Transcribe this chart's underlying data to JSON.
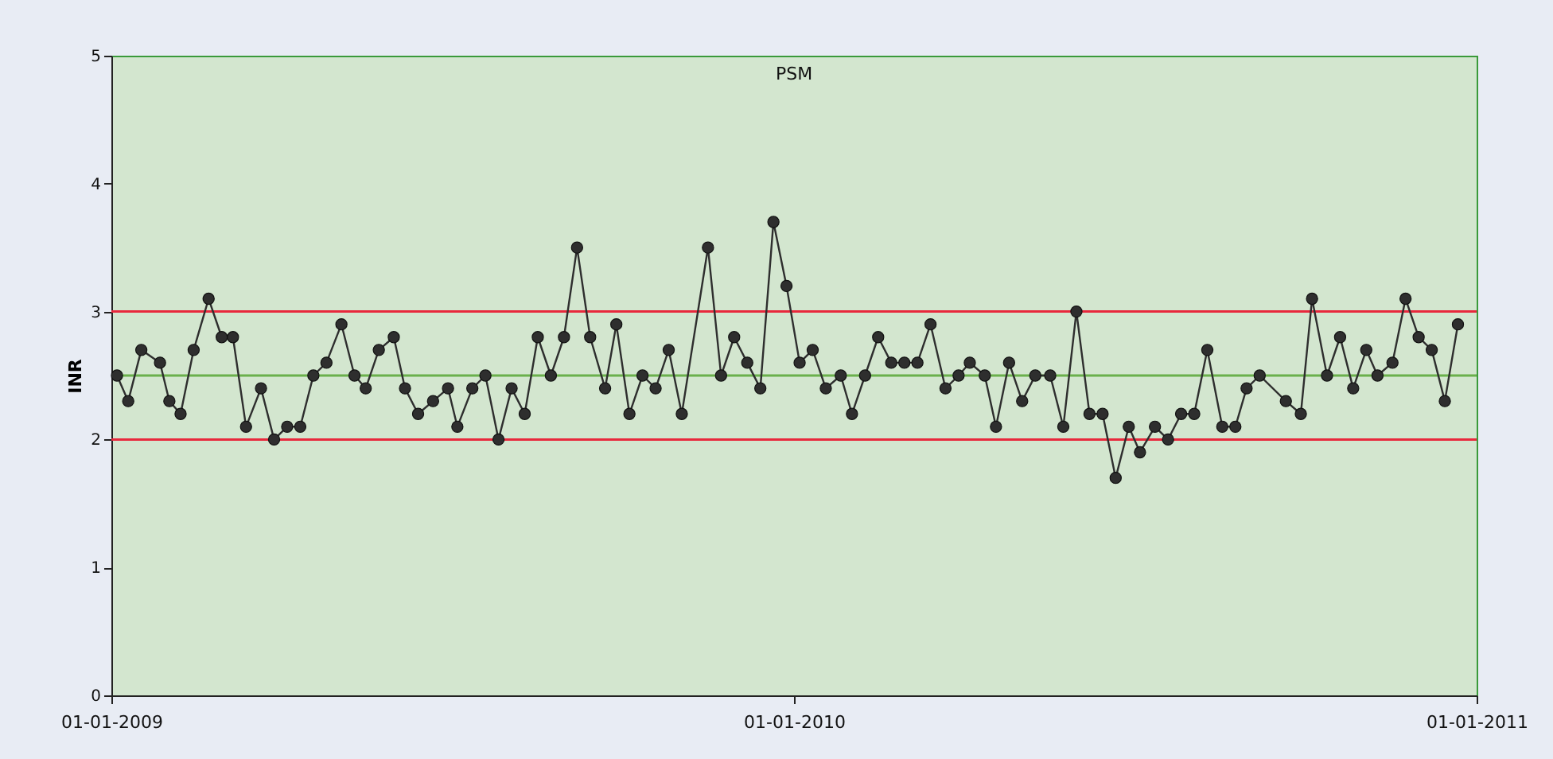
{
  "chart_data": {
    "type": "line",
    "title": "PSM",
    "ylabel": "INR",
    "x": [
      "2009-01-04",
      "2009-01-10",
      "2009-01-17",
      "2009-01-27",
      "2009-02-01",
      "2009-02-07",
      "2009-02-14",
      "2009-02-22",
      "2009-03-01",
      "2009-03-07",
      "2009-03-14",
      "2009-03-22",
      "2009-03-29",
      "2009-04-05",
      "2009-04-12",
      "2009-04-19",
      "2009-04-26",
      "2009-05-04",
      "2009-05-11",
      "2009-05-17",
      "2009-05-24",
      "2009-06-01",
      "2009-06-07",
      "2009-06-14",
      "2009-06-22",
      "2009-06-30",
      "2009-07-05",
      "2009-07-13",
      "2009-07-20",
      "2009-07-27",
      "2009-08-03",
      "2009-08-10",
      "2009-08-17",
      "2009-08-24",
      "2009-08-31",
      "2009-09-07",
      "2009-09-14",
      "2009-09-22",
      "2009-09-28",
      "2009-10-05",
      "2009-10-12",
      "2009-10-19",
      "2009-10-26",
      "2009-11-02",
      "2009-11-16",
      "2009-11-23",
      "2009-11-30",
      "2009-12-07",
      "2009-12-14",
      "2009-12-21",
      "2009-12-28",
      "2010-01-04",
      "2010-01-11",
      "2010-01-18",
      "2010-01-26",
      "2010-02-01",
      "2010-02-08",
      "2010-02-15",
      "2010-02-22",
      "2010-03-01",
      "2010-03-08",
      "2010-03-15",
      "2010-03-23",
      "2010-03-30",
      "2010-04-05",
      "2010-04-13",
      "2010-04-19",
      "2010-04-26",
      "2010-05-03",
      "2010-05-10",
      "2010-05-18",
      "2010-05-25",
      "2010-06-01",
      "2010-06-08",
      "2010-06-15",
      "2010-06-22",
      "2010-06-29",
      "2010-07-05",
      "2010-07-13",
      "2010-07-20",
      "2010-07-27",
      "2010-08-03",
      "2010-08-10",
      "2010-08-18",
      "2010-08-25",
      "2010-08-31",
      "2010-09-07",
      "2010-09-21",
      "2010-09-29",
      "2010-10-05",
      "2010-10-13",
      "2010-10-20",
      "2010-10-27",
      "2010-11-03",
      "2010-11-09",
      "2010-11-17",
      "2010-11-24",
      "2010-12-01",
      "2010-12-08",
      "2010-12-15",
      "2010-12-22"
    ],
    "series": [
      {
        "color": "#2e2e2e",
        "values": [
          2.5,
          2.3,
          2.7,
          2.6,
          2.3,
          2.2,
          2.7,
          3.1,
          2.8,
          2.8,
          2.1,
          2.4,
          2.0,
          2.1,
          2.1,
          2.5,
          2.6,
          2.9,
          2.5,
          2.4,
          2.7,
          2.8,
          2.4,
          2.2,
          2.3,
          2.4,
          2.1,
          2.4,
          2.5,
          2.0,
          2.4,
          2.2,
          2.8,
          2.5,
          2.8,
          3.5,
          2.8,
          2.4,
          2.9,
          2.2,
          2.5,
          2.4,
          2.7,
          2.2,
          3.5,
          2.5,
          2.8,
          2.6,
          2.4,
          3.7,
          3.2,
          2.6,
          2.7,
          2.4,
          2.5,
          2.2,
          2.5,
          2.8,
          2.6,
          2.6,
          2.6,
          2.9,
          2.4,
          2.5,
          2.6,
          2.5,
          2.1,
          2.6,
          2.3,
          2.5,
          2.5,
          2.1,
          3.0,
          2.2,
          2.2,
          1.7,
          2.1,
          1.9,
          2.1,
          2.0,
          2.2,
          2.2,
          2.7,
          2.1,
          2.1,
          2.4,
          2.5,
          2.3,
          2.2,
          3.1,
          2.5,
          2.8,
          2.4,
          2.7,
          2.5,
          2.6,
          3.1,
          2.8,
          2.7,
          2.3,
          2.9
        ]
      }
    ],
    "xlim": [
      "2009-01-01",
      "2011-01-01"
    ],
    "xticks": [
      {
        "value": "2009-01-01",
        "label": "01-01-2009"
      },
      {
        "value": "2010-01-01",
        "label": "01-01-2010"
      },
      {
        "value": "2011-01-01",
        "label": "01-01-2011"
      }
    ],
    "ylim": [
      0,
      5
    ],
    "yticks": [
      0,
      1,
      2,
      3,
      4,
      5
    ],
    "ref_lines": [
      {
        "axis": "y",
        "value": 2,
        "color": "#e8283c"
      },
      {
        "axis": "y",
        "value": 3,
        "color": "#e8283c"
      },
      {
        "axis": "y",
        "value": 2.5,
        "color": "#6ab04c"
      }
    ],
    "marker": "circle",
    "line_style": "solid"
  }
}
